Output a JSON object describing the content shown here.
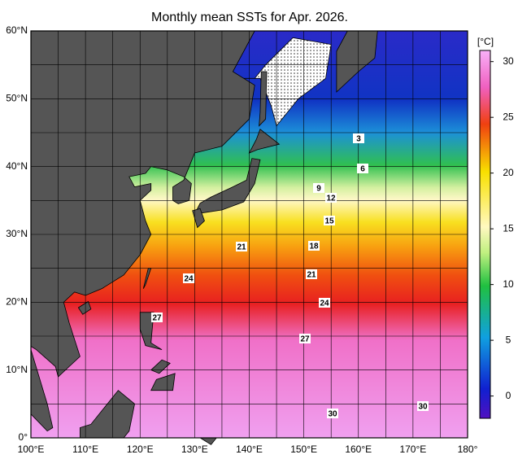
{
  "chart_data": {
    "type": "map",
    "title": "Monthly mean SSTs for Apr. 2026.",
    "xlim": [
      100,
      180
    ],
    "ylim": [
      0,
      60
    ],
    "xticks": [
      {
        "value": 100,
        "label": "100°E"
      },
      {
        "value": 110,
        "label": "110°E"
      },
      {
        "value": 120,
        "label": "120°E"
      },
      {
        "value": 130,
        "label": "130°E"
      },
      {
        "value": 140,
        "label": "140°E"
      },
      {
        "value": 150,
        "label": "150°E"
      },
      {
        "value": 160,
        "label": "160°E"
      },
      {
        "value": 170,
        "label": "170°E"
      },
      {
        "value": 180,
        "label": "180°"
      }
    ],
    "yticks": [
      {
        "value": 0,
        "label": "0°"
      },
      {
        "value": 10,
        "label": "10°N"
      },
      {
        "value": 20,
        "label": "20°N"
      },
      {
        "value": 30,
        "label": "30°N"
      },
      {
        "value": 40,
        "label": "40°N"
      },
      {
        "value": 50,
        "label": "50°N"
      },
      {
        "value": 60,
        "label": "60°N"
      }
    ],
    "colorbar": {
      "label": "[°C]",
      "lim": [
        -2,
        31
      ],
      "ticks": [
        0,
        5,
        10,
        15,
        20,
        25,
        30
      ]
    },
    "contour_labels": [
      3,
      6,
      9,
      12,
      15,
      18,
      21,
      21,
      24,
      24,
      27,
      27,
      30,
      30
    ]
  }
}
